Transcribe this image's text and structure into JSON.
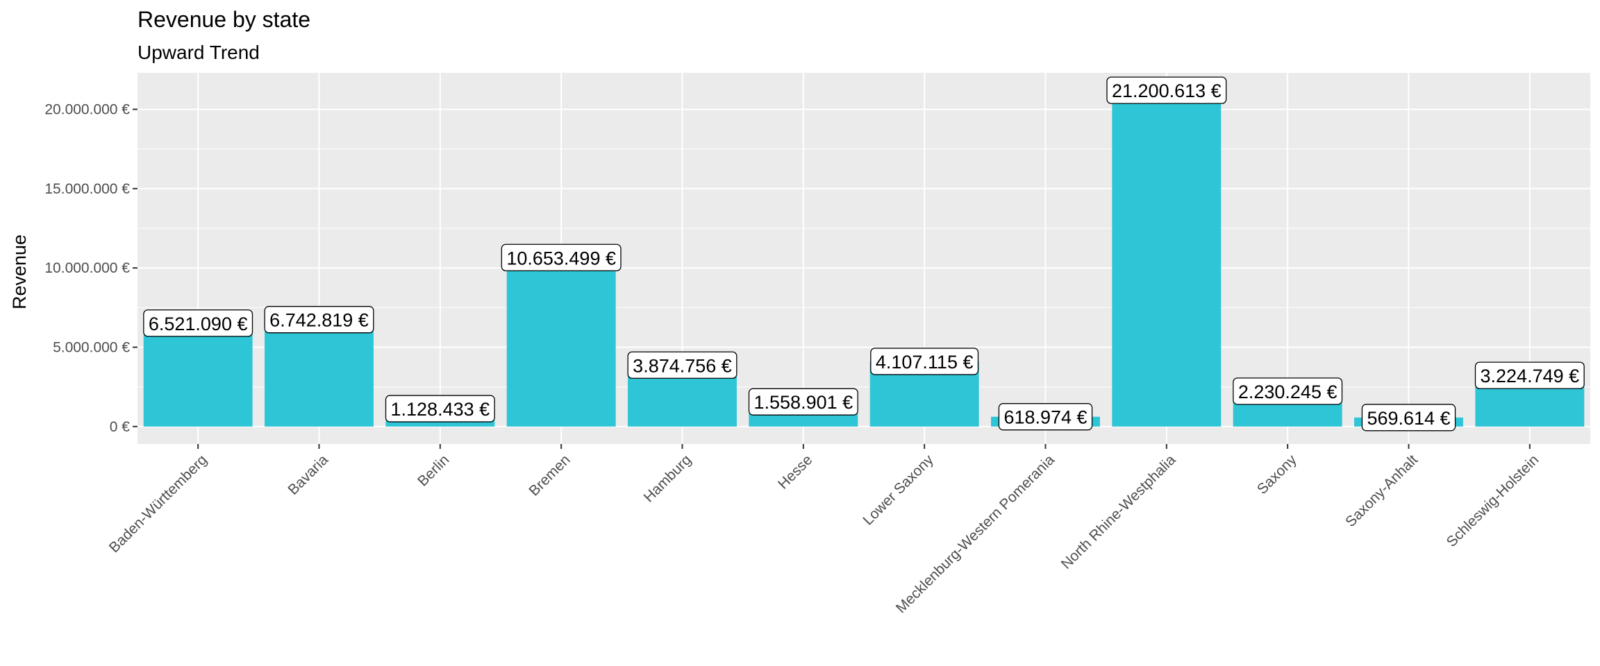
{
  "chart_data": {
    "type": "bar",
    "title": "Revenue by state",
    "subtitle": "Upward Trend",
    "xlabel": "",
    "ylabel": "Revenue",
    "ylim": [
      -1100000,
      22300000
    ],
    "yticks": [
      0,
      5000000,
      10000000,
      15000000,
      20000000
    ],
    "ytick_labels": [
      "0 €",
      "5.000.000 €",
      "10.000.000 €",
      "15.000.000 €",
      "20.000.000 €"
    ],
    "grid": true,
    "legend": "none",
    "categories": [
      "Baden-Württemberg",
      "Bavaria",
      "Berlin",
      "Bremen",
      "Hamburg",
      "Hesse",
      "Lower Saxony",
      "Mecklenburg-Western Pomerania",
      "North Rhine-Westphalia",
      "Saxony",
      "Saxony-Anhalt",
      "Schleswig-Holstein"
    ],
    "values": [
      6521090,
      6742819,
      1128433,
      10653499,
      3874756,
      1558901,
      4107115,
      618974,
      21200613,
      2230245,
      569614,
      3224749
    ],
    "value_labels": [
      "6.521.090 €",
      "6.742.819 €",
      "1.128.433 €",
      "10.653.499 €",
      "3.874.756 €",
      "1.558.901 €",
      "4.107.115 €",
      "618.974 €",
      "21.200.613 €",
      "2.230.245 €",
      "569.614 €",
      "3.224.749 €"
    ],
    "colors": {
      "bar": "#2ec5d6",
      "panel": "#ebebeb",
      "grid": "#ffffff"
    }
  }
}
